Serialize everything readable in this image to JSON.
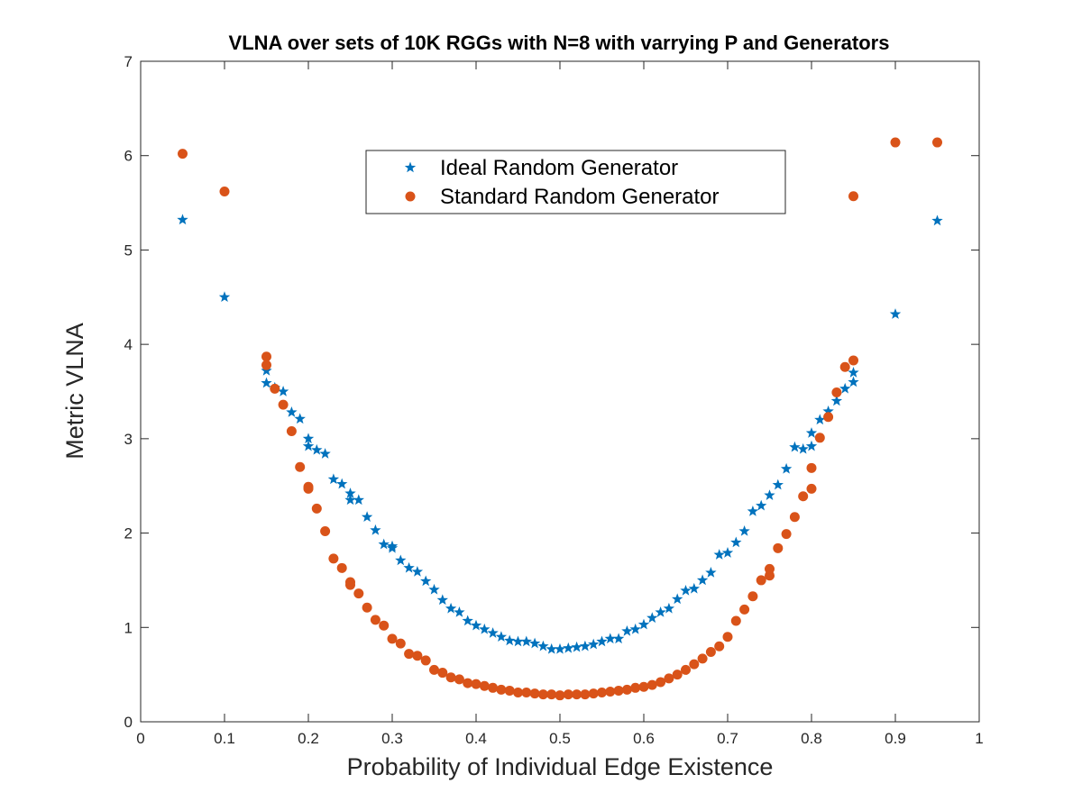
{
  "chart_data": {
    "type": "scatter",
    "title": "VLNA over sets of 10K RGGs with N=8 with varrying P and Generators",
    "xlabel": "Probability of Individual Edge Existence",
    "ylabel": "Metric VLNA",
    "xlim": [
      0,
      1
    ],
    "ylim": [
      0,
      7
    ],
    "xticks": [
      "0",
      "0.1",
      "0.2",
      "0.3",
      "0.4",
      "0.5",
      "0.6",
      "0.7",
      "0.8",
      "0.9",
      "1"
    ],
    "yticks": [
      "0",
      "1",
      "2",
      "3",
      "4",
      "5",
      "6",
      "7"
    ],
    "grid": false,
    "legend_position": "top-center",
    "series": [
      {
        "name": "Ideal Random Generator",
        "marker": "star",
        "color": "#0072BD",
        "x": [
          0.05,
          0.1,
          0.15,
          0.15,
          0.16,
          0.17,
          0.18,
          0.19,
          0.2,
          0.2,
          0.21,
          0.22,
          0.23,
          0.24,
          0.25,
          0.25,
          0.26,
          0.27,
          0.28,
          0.29,
          0.3,
          0.3,
          0.31,
          0.32,
          0.33,
          0.34,
          0.35,
          0.36,
          0.37,
          0.38,
          0.39,
          0.4,
          0.41,
          0.42,
          0.43,
          0.44,
          0.45,
          0.46,
          0.47,
          0.48,
          0.49,
          0.5,
          0.51,
          0.52,
          0.53,
          0.54,
          0.55,
          0.56,
          0.57,
          0.58,
          0.59,
          0.6,
          0.61,
          0.62,
          0.63,
          0.64,
          0.65,
          0.66,
          0.67,
          0.68,
          0.69,
          0.7,
          0.71,
          0.72,
          0.73,
          0.74,
          0.75,
          0.76,
          0.77,
          0.78,
          0.79,
          0.8,
          0.8,
          0.81,
          0.82,
          0.83,
          0.84,
          0.85,
          0.85,
          0.9,
          0.95
        ],
        "y": [
          5.32,
          4.5,
          3.59,
          3.72,
          3.54,
          3.5,
          3.28,
          3.21,
          3.0,
          2.92,
          2.88,
          2.84,
          2.57,
          2.52,
          2.42,
          2.35,
          2.35,
          2.17,
          2.03,
          1.88,
          1.86,
          1.84,
          1.71,
          1.63,
          1.59,
          1.49,
          1.4,
          1.29,
          1.2,
          1.16,
          1.07,
          1.02,
          0.98,
          0.94,
          0.9,
          0.86,
          0.85,
          0.85,
          0.83,
          0.8,
          0.77,
          0.77,
          0.78,
          0.79,
          0.8,
          0.82,
          0.85,
          0.88,
          0.88,
          0.96,
          0.98,
          1.03,
          1.1,
          1.16,
          1.2,
          1.3,
          1.39,
          1.41,
          1.5,
          1.58,
          1.77,
          1.79,
          1.9,
          2.02,
          2.23,
          2.29,
          2.4,
          2.51,
          2.68,
          2.91,
          2.89,
          2.92,
          3.06,
          3.2,
          3.29,
          3.4,
          3.53,
          3.6,
          3.7,
          4.32,
          5.31
        ]
      },
      {
        "name": "Standard Random Generator",
        "marker": "circle",
        "color": "#D95319",
        "x": [
          0.05,
          0.1,
          0.15,
          0.15,
          0.16,
          0.17,
          0.18,
          0.19,
          0.2,
          0.2,
          0.21,
          0.22,
          0.23,
          0.24,
          0.25,
          0.25,
          0.26,
          0.27,
          0.28,
          0.29,
          0.3,
          0.31,
          0.32,
          0.33,
          0.34,
          0.35,
          0.36,
          0.37,
          0.38,
          0.39,
          0.4,
          0.41,
          0.42,
          0.43,
          0.44,
          0.45,
          0.46,
          0.47,
          0.48,
          0.49,
          0.5,
          0.51,
          0.52,
          0.53,
          0.54,
          0.55,
          0.56,
          0.57,
          0.58,
          0.59,
          0.6,
          0.61,
          0.62,
          0.63,
          0.64,
          0.65,
          0.66,
          0.67,
          0.68,
          0.69,
          0.7,
          0.71,
          0.72,
          0.73,
          0.74,
          0.75,
          0.75,
          0.76,
          0.77,
          0.78,
          0.79,
          0.8,
          0.8,
          0.81,
          0.82,
          0.83,
          0.84,
          0.85,
          0.85,
          0.9,
          0.95
        ],
        "y": [
          6.02,
          5.62,
          3.78,
          3.87,
          3.53,
          3.36,
          3.08,
          2.7,
          2.49,
          2.47,
          2.26,
          2.02,
          1.73,
          1.63,
          1.48,
          1.45,
          1.36,
          1.21,
          1.08,
          1.02,
          0.88,
          0.83,
          0.72,
          0.7,
          0.65,
          0.55,
          0.52,
          0.47,
          0.45,
          0.41,
          0.4,
          0.38,
          0.36,
          0.34,
          0.33,
          0.31,
          0.31,
          0.3,
          0.29,
          0.29,
          0.28,
          0.29,
          0.29,
          0.29,
          0.3,
          0.31,
          0.32,
          0.33,
          0.34,
          0.36,
          0.37,
          0.39,
          0.42,
          0.46,
          0.5,
          0.55,
          0.61,
          0.67,
          0.74,
          0.8,
          0.9,
          1.07,
          1.19,
          1.33,
          1.5,
          1.55,
          1.62,
          1.84,
          1.99,
          2.17,
          2.39,
          2.47,
          2.69,
          3.01,
          3.23,
          3.49,
          3.76,
          3.83,
          5.57,
          6.14,
          6.14
        ]
      }
    ]
  }
}
